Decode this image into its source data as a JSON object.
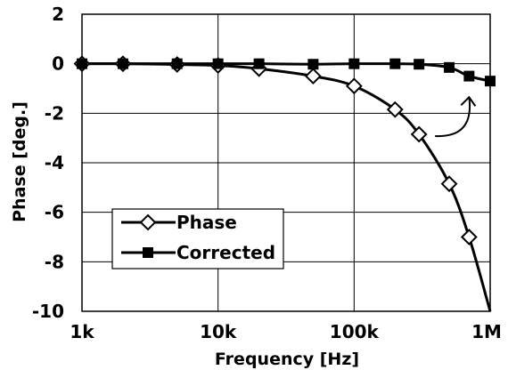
{
  "chart_data": {
    "type": "line",
    "title": "",
    "xlabel": "Frequency [Hz]",
    "ylabel": "Phase [deg.]",
    "xscale": "log",
    "xlim": [
      1000,
      1000000
    ],
    "ylim": [
      -10,
      2
    ],
    "xticks": [
      1000,
      10000,
      100000,
      1000000
    ],
    "xtick_labels": [
      "1k",
      "10k",
      "100k",
      "1M"
    ],
    "yticks": [
      2,
      0,
      -2,
      -4,
      -6,
      -8,
      -10
    ],
    "ytick_labels": [
      "2",
      "0",
      "-2",
      "-4",
      "-6",
      "-8",
      "-10"
    ],
    "grid": true,
    "legend_position": "lower-left",
    "series": [
      {
        "name": "Phase",
        "marker": "open-diamond",
        "color": "#000000",
        "x": [
          1000,
          2000,
          5000,
          10000,
          20000,
          50000,
          100000,
          200000,
          300000,
          500000,
          700000,
          1000000
        ],
        "y": [
          0,
          0,
          -0.03,
          -0.07,
          -0.2,
          -0.5,
          -0.9,
          -1.85,
          -2.85,
          -4.85,
          -7.0,
          -10.0
        ],
        "plot_x": [
          1000,
          2000,
          5000,
          10000,
          20000,
          50000,
          100000,
          200000,
          300000,
          500000,
          700000
        ],
        "plot_y": [
          0,
          0,
          -0.03,
          -0.07,
          -0.2,
          -0.5,
          -0.9,
          -1.85,
          -2.85,
          -4.85,
          -7.0
        ]
      },
      {
        "name": "Corrected",
        "marker": "filled-square",
        "color": "#000000",
        "x": [
          1000,
          2000,
          5000,
          10000,
          20000,
          50000,
          100000,
          200000,
          300000,
          500000,
          700000,
          1000000
        ],
        "y": [
          0,
          0,
          0,
          0,
          0,
          -0.02,
          0,
          0,
          -0.02,
          -0.15,
          -0.5,
          -0.7
        ]
      }
    ],
    "annotation": {
      "type": "curved-arrow",
      "from": [
        300000,
        -2.85
      ],
      "to": [
        700000,
        -1.35
      ]
    }
  }
}
